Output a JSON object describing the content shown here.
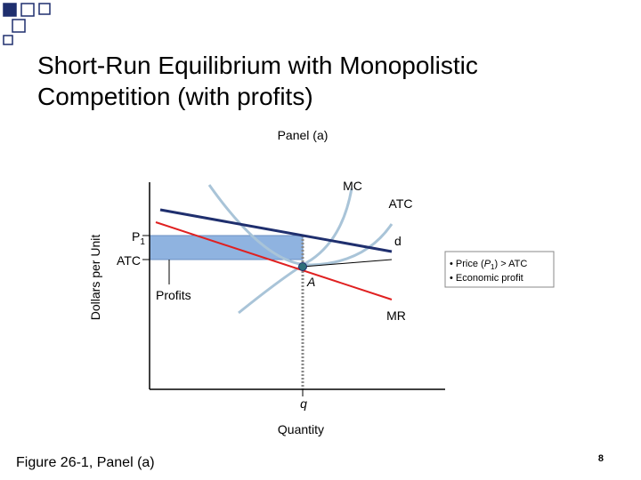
{
  "slide": {
    "title_lines": [
      "Short-Run Equilibrium with Monopolistic",
      "Competition (with profits)"
    ],
    "panel_label": "Panel (a)",
    "y_axis_label": "Dollars per Unit",
    "x_axis_label": "Quantity",
    "curve_labels": {
      "mc": "MC",
      "atc": "ATC",
      "d": "d",
      "mr": "MR"
    },
    "price_label": {
      "main": "P",
      "sub": "1"
    },
    "atc_level_label": "ATC",
    "profits_label": "Profits",
    "point_label": "A",
    "quantity_label": "q",
    "notes": [
      {
        "bullet": "•",
        "before": "Price (",
        "main": "P",
        "sub": "1",
        "after": ") > ATC"
      },
      {
        "bullet": "•",
        "before": "Economic profit"
      }
    ],
    "caption": "Figure 26-1, Panel (a)",
    "page_number": "8"
  }
}
